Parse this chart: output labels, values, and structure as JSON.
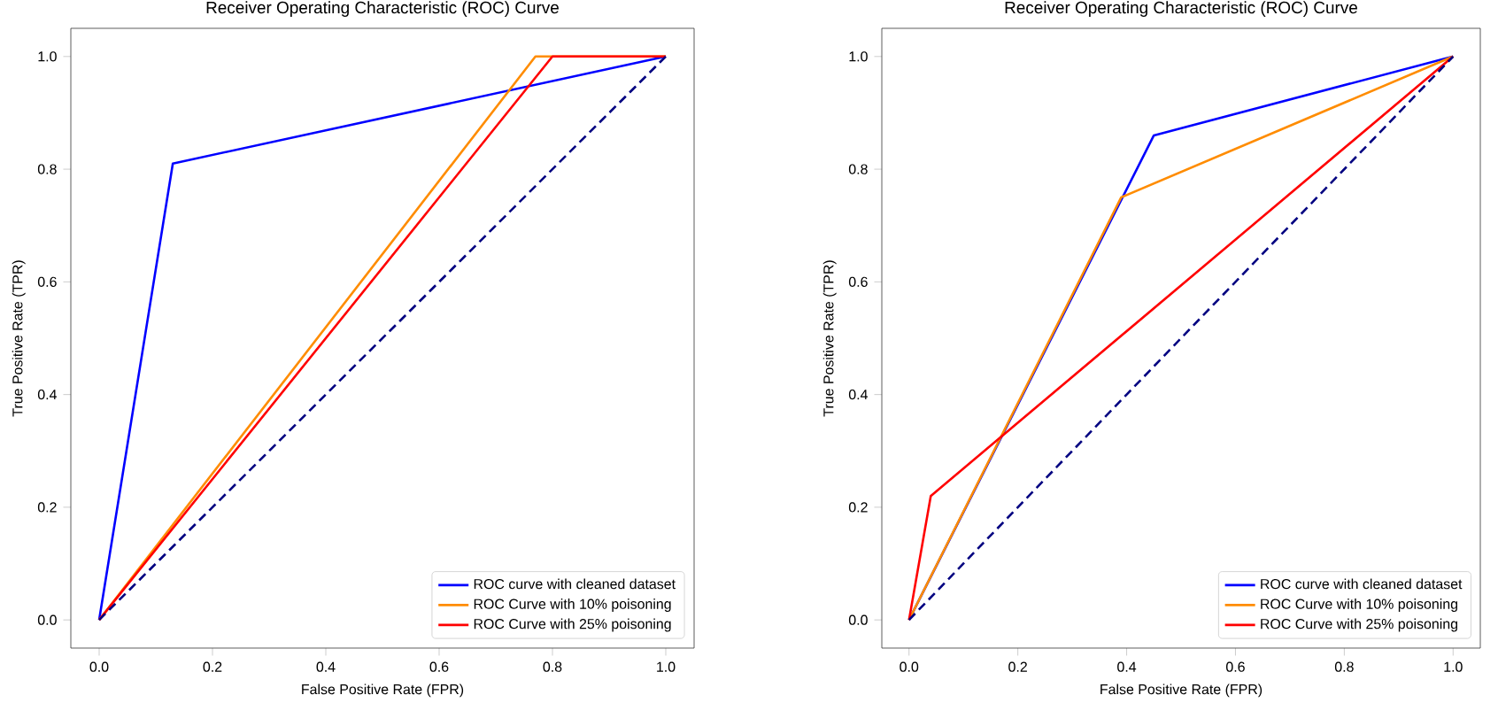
{
  "chart_data": [
    {
      "type": "line",
      "title": "Receiver Operating Characteristic (ROC) Curve",
      "xlabel": "False Positive Rate (FPR)",
      "ylabel": "True Positive Rate (TPR)",
      "xlim": [
        -0.05,
        1.05
      ],
      "ylim": [
        -0.05,
        1.05
      ],
      "xticks": [
        {
          "value": 0,
          "label": "0.0"
        },
        {
          "value": 0.2,
          "label": "0.2"
        },
        {
          "value": 0.4,
          "label": "0.4"
        },
        {
          "value": 0.6,
          "label": "0.6"
        },
        {
          "value": 0.8,
          "label": "0.8"
        },
        {
          "value": 1,
          "label": "1.0"
        }
      ],
      "yticks": [
        {
          "value": 0,
          "label": "0.0"
        },
        {
          "value": 0.2,
          "label": "0.2"
        },
        {
          "value": 0.4,
          "label": "0.4"
        },
        {
          "value": 0.6,
          "label": "0.6"
        },
        {
          "value": 0.8,
          "label": "0.8"
        },
        {
          "value": 1,
          "label": "1.0"
        }
      ],
      "legend": "bottom right",
      "grid": false,
      "marker": "none",
      "series": [
        {
          "name": "ROC curve with cleaned dataset",
          "color": "#0000ff",
          "x": [
            0,
            0.13,
            1
          ],
          "values": [
            0,
            0.81,
            1
          ]
        },
        {
          "name": "ROC Curve with 10% poisoning",
          "color": "#ff8c00",
          "x": [
            0,
            0.77,
            1
          ],
          "values": [
            0,
            1,
            1
          ]
        },
        {
          "name": "ROC Curve with 25% poisoning",
          "color": "#ff0000",
          "x": [
            0,
            0.8,
            1
          ],
          "values": [
            0,
            1,
            1
          ]
        },
        {
          "color": "#000080",
          "line_style": "dashed",
          "x": [
            0,
            1
          ],
          "values": [
            0,
            1
          ]
        }
      ]
    },
    {
      "type": "line",
      "title": "Receiver Operating Characteristic (ROC) Curve",
      "xlabel": "False Positive Rate (FPR)",
      "ylabel": "True Positive Rate (TPR)",
      "xlim": [
        -0.05,
        1.05
      ],
      "ylim": [
        -0.05,
        1.05
      ],
      "xticks": [
        {
          "value": 0,
          "label": "0.0"
        },
        {
          "value": 0.2,
          "label": "0.2"
        },
        {
          "value": 0.4,
          "label": "0.4"
        },
        {
          "value": 0.6,
          "label": "0.6"
        },
        {
          "value": 0.8,
          "label": "0.8"
        },
        {
          "value": 1,
          "label": "1.0"
        }
      ],
      "yticks": [
        {
          "value": 0,
          "label": "0.0"
        },
        {
          "value": 0.2,
          "label": "0.2"
        },
        {
          "value": 0.4,
          "label": "0.4"
        },
        {
          "value": 0.6,
          "label": "0.6"
        },
        {
          "value": 0.8,
          "label": "0.8"
        },
        {
          "value": 1,
          "label": "1.0"
        }
      ],
      "legend": "bottom right",
      "grid": false,
      "marker": "none",
      "series": [
        {
          "name": "ROC curve with cleaned dataset",
          "color": "#0000ff",
          "x": [
            0,
            0.45,
            1
          ],
          "values": [
            0,
            0.86,
            1
          ]
        },
        {
          "name": "ROC Curve with 10% poisoning",
          "color": "#ff8c00",
          "x": [
            0,
            0.39,
            1
          ],
          "values": [
            0,
            0.75,
            1
          ]
        },
        {
          "name": "ROC Curve with 25% poisoning",
          "color": "#ff0000",
          "x": [
            0,
            0.04,
            1
          ],
          "values": [
            0,
            0.22,
            1
          ]
        },
        {
          "color": "#000080",
          "line_style": "dashed",
          "x": [
            0,
            1
          ],
          "values": [
            0,
            1
          ]
        }
      ]
    }
  ]
}
